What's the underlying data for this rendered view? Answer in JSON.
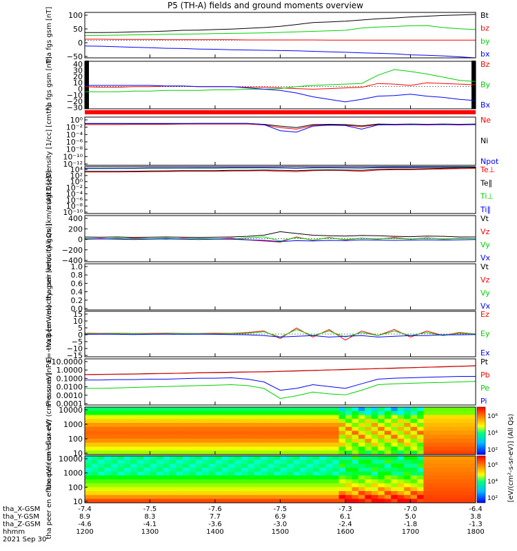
{
  "title": "P5 (TH-A) fields and ground moments overview",
  "colors": {
    "black": "#000000",
    "red": "#ff0000",
    "green": "#00d000",
    "blue": "#0000ff",
    "bar": "#ff0000"
  },
  "x_axis": {
    "hhmm": [
      "1200",
      "1300",
      "1400",
      "1500",
      "1600",
      "1700",
      "1800"
    ],
    "rows": [
      {
        "label": "tha_X-GSM",
        "values": [
          "-7.4",
          "-7.5",
          "-7.6",
          "-7.5",
          "-7.3",
          "-7.0",
          "-6.4"
        ]
      },
      {
        "label": "tha_Y-GSM",
        "values": [
          "8.9",
          "8.3",
          "7.7",
          "6.9",
          "6.1",
          "5.0",
          "3.8"
        ]
      },
      {
        "label": "tha_Z-GSM",
        "values": [
          "-4.6",
          "-4.1",
          "-3.6",
          "-3.0",
          "-2.4",
          "-1.8",
          "-1.3"
        ]
      },
      {
        "label": "hhmm",
        "values": [
          "1200",
          "1300",
          "1400",
          "1500",
          "1600",
          "1700",
          "1800"
        ]
      }
    ],
    "date": "2021 Sep 30"
  },
  "colorbar": {
    "ticks_top": [
      "10⁶",
      "10⁴",
      "10²"
    ],
    "ticks_bottom": [
      "10⁶",
      "10⁴",
      "10²"
    ],
    "label": "[eV/(cm²-s-sr-eV)] (All Qs)"
  },
  "chart_data": [
    {
      "type": "line",
      "ylabel": "tha fgs gsm [nT]",
      "ylim": [
        -70,
        110
      ],
      "yticks": [
        "100",
        "50",
        "0",
        "−50"
      ],
      "series": [
        {
          "name": "Bt",
          "color": "black",
          "values": [
            30,
            30,
            31,
            33,
            34,
            36,
            39,
            40,
            42,
            44,
            47,
            50,
            55,
            62,
            70,
            72,
            75,
            80,
            85,
            88,
            92,
            95,
            98,
            100,
            102
          ]
        },
        {
          "name": "bz",
          "color": "red",
          "values": [
            4,
            4,
            3,
            3,
            3,
            2,
            2,
            2,
            2,
            2,
            1,
            1,
            1,
            1,
            1,
            0,
            0,
            0,
            0,
            0,
            0,
            0,
            0,
            0,
            0
          ]
        },
        {
          "name": "by",
          "color": "green",
          "values": [
            18,
            19,
            20,
            21,
            22,
            23,
            24,
            25,
            26,
            27,
            28,
            29,
            31,
            33,
            35,
            37,
            39,
            48,
            52,
            54,
            57,
            58,
            50,
            45,
            42
          ]
        },
        {
          "name": "bx",
          "color": "blue",
          "values": [
            -23,
            -24,
            -26,
            -28,
            -30,
            -32,
            -33,
            -35,
            -36,
            -38,
            -39,
            -40,
            -41,
            -42,
            -44,
            -46,
            -48,
            -50,
            -52,
            -54,
            -58,
            -60,
            -62,
            -66,
            -70
          ]
        }
      ]
    },
    {
      "type": "line",
      "ylabel": "tha fgs gsm [nT]",
      "ylim": [
        -35,
        40
      ],
      "yticks": [
        "40",
        "30",
        "20",
        "10",
        "0",
        "−10",
        "−20",
        "−30"
      ],
      "series": [
        {
          "name": "Bz",
          "color": "red",
          "values": [
            0,
            -1,
            -1,
            0,
            0,
            1,
            1,
            0,
            0,
            0,
            -1,
            -1,
            -2,
            -3,
            -4,
            -3,
            -2,
            -1,
            5,
            4,
            2,
            6,
            5,
            4,
            3
          ]
        },
        {
          "name": "By",
          "color": "green",
          "values": [
            -8,
            -8,
            -8,
            -7,
            -7,
            -6,
            -6,
            -6,
            -5,
            -5,
            -4,
            -4,
            -3,
            0,
            2,
            3,
            4,
            5,
            18,
            27,
            24,
            20,
            15,
            10,
            8
          ]
        },
        {
          "name": "Bx",
          "color": "blue",
          "values": [
            2,
            2,
            2,
            2,
            2,
            1,
            1,
            0,
            0,
            0,
            -2,
            -4,
            -6,
            -10,
            -16,
            -20,
            -24,
            -20,
            -15,
            -14,
            -12,
            -15,
            -17,
            -20,
            -22
          ]
        }
      ]
    },
    {
      "type": "line",
      "ylabel": "Density [1/cc] [cm⁻³]",
      "log": true,
      "ylim": [
        -14,
        2
      ],
      "yticks": [
        "10⁰",
        "10⁻²",
        "10⁻⁴",
        "10⁻⁶",
        "10⁻⁸",
        "10⁻¹⁰",
        "10⁻¹²"
      ],
      "series": [
        {
          "name": "Ne",
          "color": "red",
          "values": [
            -0.5,
            -0.5,
            -0.5,
            -0.4,
            -0.4,
            -0.4,
            -0.3,
            -0.3,
            -0.3,
            -0.3,
            -0.3,
            -0.6,
            -1.5,
            -2.0,
            -0.8,
            -0.6,
            -0.7,
            -1.2,
            -0.5,
            -0.6,
            -0.5,
            -0.6,
            -0.5,
            -0.6,
            -0.5
          ]
        },
        {
          "name": "Ni",
          "color": "black",
          "values": [
            -0.2,
            -0.2,
            -0.2,
            -0.2,
            -0.2,
            -0.2,
            -0.2,
            -0.1,
            -0.1,
            -0.1,
            -0.1,
            -0.4,
            -1.0,
            -1.5,
            -0.5,
            -0.4,
            -0.5,
            -0.9,
            -0.3,
            -0.4,
            -0.3,
            -0.4,
            -0.3,
            -0.4,
            -0.3
          ]
        },
        {
          "name": "Npot",
          "color": "blue",
          "values": [
            -0.1,
            -0.1,
            -0.1,
            -0.1,
            -0.1,
            -0.1,
            -0.1,
            -0.1,
            -0.1,
            -0.1,
            -0.1,
            -0.5,
            -2.5,
            -3.0,
            -1.0,
            -0.7,
            -0.8,
            -2.0,
            -0.6,
            -0.5,
            -0.5,
            -0.5,
            -0.5,
            -0.5,
            -0.5
          ]
        }
      ]
    },
    {
      "type": "line",
      "ylabel": "magt3 [eV]",
      "log": true,
      "ylim": [
        -10,
        4
      ],
      "yticks": [
        "10⁴",
        "10²",
        "10⁰",
        "10⁻²",
        "10⁻⁴",
        "10⁻⁶",
        "10⁻⁸",
        "10⁻¹⁰"
      ],
      "series": [
        {
          "name": "Te⊥",
          "color": "red",
          "values": [
            2.4,
            2.4,
            2.4,
            2.45,
            2.5,
            2.55,
            2.6,
            2.6,
            2.6,
            2.7,
            2.75,
            2.8,
            2.6,
            2.5,
            2.8,
            2.9,
            2.8,
            2.6,
            3.0,
            3.1,
            3.1,
            3.2,
            3.3,
            3.4,
            3.5
          ]
        },
        {
          "name": "Te∥",
          "color": "black",
          "values": [
            2.6,
            2.6,
            2.6,
            2.65,
            2.7,
            2.75,
            2.8,
            2.8,
            2.8,
            2.9,
            2.9,
            3.0,
            2.9,
            2.8,
            3.0,
            3.05,
            3.0,
            2.9,
            3.2,
            3.3,
            3.3,
            3.4,
            3.5,
            3.6,
            3.7
          ]
        },
        {
          "name": "Ti⊥",
          "color": "green",
          "values": [
            3.4,
            3.4,
            3.45,
            3.45,
            3.5,
            3.5,
            3.55,
            3.55,
            3.55,
            3.6,
            3.6,
            3.65,
            3.6,
            3.5,
            3.6,
            3.65,
            3.6,
            3.55,
            3.7,
            3.75,
            3.75,
            3.8,
            3.8,
            3.85,
            3.9
          ]
        },
        {
          "name": "Ti∥",
          "color": "blue",
          "values": [
            3.5,
            3.5,
            3.55,
            3.55,
            3.6,
            3.6,
            3.6,
            3.65,
            3.65,
            3.7,
            3.7,
            3.7,
            3.65,
            3.55,
            3.7,
            3.7,
            3.65,
            3.6,
            3.75,
            3.8,
            3.8,
            3.85,
            3.85,
            3.9,
            3.95
          ]
        }
      ]
    },
    {
      "type": "line",
      "ylabel": "tha peir velocity gsm [km/s (All Qs)]",
      "ylim": [
        -400,
        400
      ],
      "yticks": [
        "400",
        "200",
        "0",
        "−200",
        "−400"
      ],
      "series": [
        {
          "name": "Vt",
          "color": "black",
          "values": [
            30,
            25,
            30,
            20,
            25,
            30,
            25,
            20,
            25,
            30,
            40,
            60,
            120,
            90,
            60,
            50,
            45,
            55,
            50,
            40,
            35,
            45,
            40,
            30,
            30
          ]
        },
        {
          "name": "Vz",
          "color": "red",
          "values": [
            0,
            5,
            -5,
            10,
            0,
            -10,
            5,
            0,
            -5,
            10,
            -20,
            -40,
            -60,
            30,
            -30,
            20,
            -20,
            10,
            -10,
            20,
            -10,
            15,
            -10,
            5,
            0
          ]
        },
        {
          "name": "Vy",
          "color": "green",
          "values": [
            5,
            -5,
            10,
            -5,
            0,
            10,
            -5,
            5,
            0,
            -10,
            15,
            30,
            -40,
            20,
            -25,
            15,
            -15,
            10,
            -5,
            10,
            -10,
            10,
            -5,
            5,
            0
          ]
        },
        {
          "name": "Vx",
          "color": "blue",
          "values": [
            -10,
            -5,
            -10,
            -15,
            -10,
            -5,
            -10,
            -15,
            -10,
            -10,
            -20,
            -30,
            -50,
            -35,
            -40,
            -30,
            -35,
            -20,
            -25,
            -30,
            -25,
            -20,
            -25,
            -20,
            -15
          ]
        }
      ]
    },
    {
      "type": "line",
      "ylabel": "tha peer velocity gsm [km/s (All Qs)]",
      "ylim": [
        0,
        1
      ],
      "yticks": [
        "1.0",
        "0.8",
        "0.6",
        "0.4",
        "0.2",
        "0.0"
      ],
      "series": [
        {
          "name": "Vt",
          "color": "black",
          "values": []
        },
        {
          "name": "Vz",
          "color": "red",
          "values": []
        },
        {
          "name": "Vy",
          "color": "green",
          "values": []
        },
        {
          "name": "Vx",
          "color": "blue",
          "values": []
        }
      ]
    },
    {
      "type": "line",
      "ylabel": "E=−VxB [mV/m]",
      "ylim": [
        -15,
        15
      ],
      "yticks": [
        "15",
        "10",
        "5",
        "0",
        "−5",
        "−10",
        "−15"
      ],
      "series": [
        {
          "name": "Ez",
          "color": "red",
          "values": [
            0.5,
            0.4,
            0.5,
            0.3,
            0.4,
            0.5,
            0.4,
            0.3,
            0.5,
            0.4,
            1,
            2,
            -3,
            4,
            -2,
            3,
            -4,
            2,
            -1,
            3,
            -2,
            2,
            -1,
            1,
            0
          ]
        },
        {
          "name": "Ey",
          "color": "green",
          "values": [
            0.2,
            0.1,
            0.3,
            0.2,
            0.1,
            0.2,
            0.3,
            0.2,
            0.1,
            0.2,
            0.5,
            1.5,
            -2,
            3,
            -1,
            2,
            -2,
            1,
            -1,
            2,
            -1,
            1,
            -1,
            0.5,
            0
          ]
        },
        {
          "name": "Ex",
          "color": "blue",
          "values": [
            -0.2,
            -0.1,
            -0.2,
            -0.3,
            -0.2,
            -0.1,
            -0.2,
            -0.1,
            -0.2,
            -0.3,
            -0.5,
            -1,
            -2,
            -1.5,
            -1,
            -2,
            -1.5,
            -1,
            -2,
            -1.5,
            -1,
            -1,
            -0.5,
            -0.5,
            -0.3
          ]
        }
      ]
    },
    {
      "type": "line",
      "ylabel": "Pressure [nPa]",
      "log": true,
      "ylim": [
        -4,
        1
      ],
      "yticks": [
        "10.0000",
        "1.0000",
        "0.1000",
        "0.0100",
        "0.0010",
        "0.0001"
      ],
      "series": [
        {
          "name": "Pt",
          "color": "black",
          "values": [
            -0.7,
            -0.68,
            -0.66,
            -0.64,
            -0.6,
            -0.58,
            -0.55,
            -0.5,
            -0.48,
            -0.45,
            -0.42,
            -0.4,
            -0.35,
            -0.3,
            -0.25,
            -0.2,
            -0.15,
            -0.1,
            -0.05,
            0,
            0.05,
            0.1,
            0.15,
            0.2,
            0.25
          ]
        },
        {
          "name": "Pb",
          "color": "red",
          "values": [
            -0.72,
            -0.7,
            -0.68,
            -0.66,
            -0.62,
            -0.6,
            -0.57,
            -0.52,
            -0.5,
            -0.47,
            -0.44,
            -0.42,
            -0.37,
            -0.32,
            -0.27,
            -0.22,
            -0.17,
            -0.12,
            -0.07,
            -0.02,
            0.03,
            0.08,
            0.13,
            0.18,
            0.23
          ]
        },
        {
          "name": "Pe",
          "color": "green",
          "values": [
            -2.2,
            -2.2,
            -2.15,
            -2.1,
            -2.05,
            -2.0,
            -1.95,
            -1.9,
            -1.85,
            -1.8,
            -1.9,
            -2.2,
            -3.3,
            -3.0,
            -2.6,
            -2.8,
            -2.9,
            -2.4,
            -1.8,
            -1.7,
            -1.65,
            -1.6,
            -1.55,
            -1.5,
            -1.45
          ]
        },
        {
          "name": "Pi",
          "color": "blue",
          "values": [
            -1.3,
            -1.3,
            -1.25,
            -1.25,
            -1.2,
            -1.2,
            -1.15,
            -1.1,
            -1.1,
            -1.05,
            -1.2,
            -1.5,
            -2.4,
            -2.2,
            -1.8,
            -2.0,
            -2.2,
            -1.7,
            -1.2,
            -1.1,
            -1.05,
            -1.0,
            -0.95,
            -0.9,
            -0.9
          ]
        }
      ]
    },
    {
      "type": "heatmap",
      "ylabel": "tha peir en eflux eV/ (cm²-s-sr-eV)",
      "yticks": [
        "10000",
        "1000",
        "100",
        "10"
      ],
      "log": true
    },
    {
      "type": "heatmap",
      "ylabel": "tha peer en eflux eV/ (cm²-s-sr-eV)",
      "yticks": [
        "10000",
        "1000",
        "100",
        "10"
      ],
      "log": true
    }
  ]
}
